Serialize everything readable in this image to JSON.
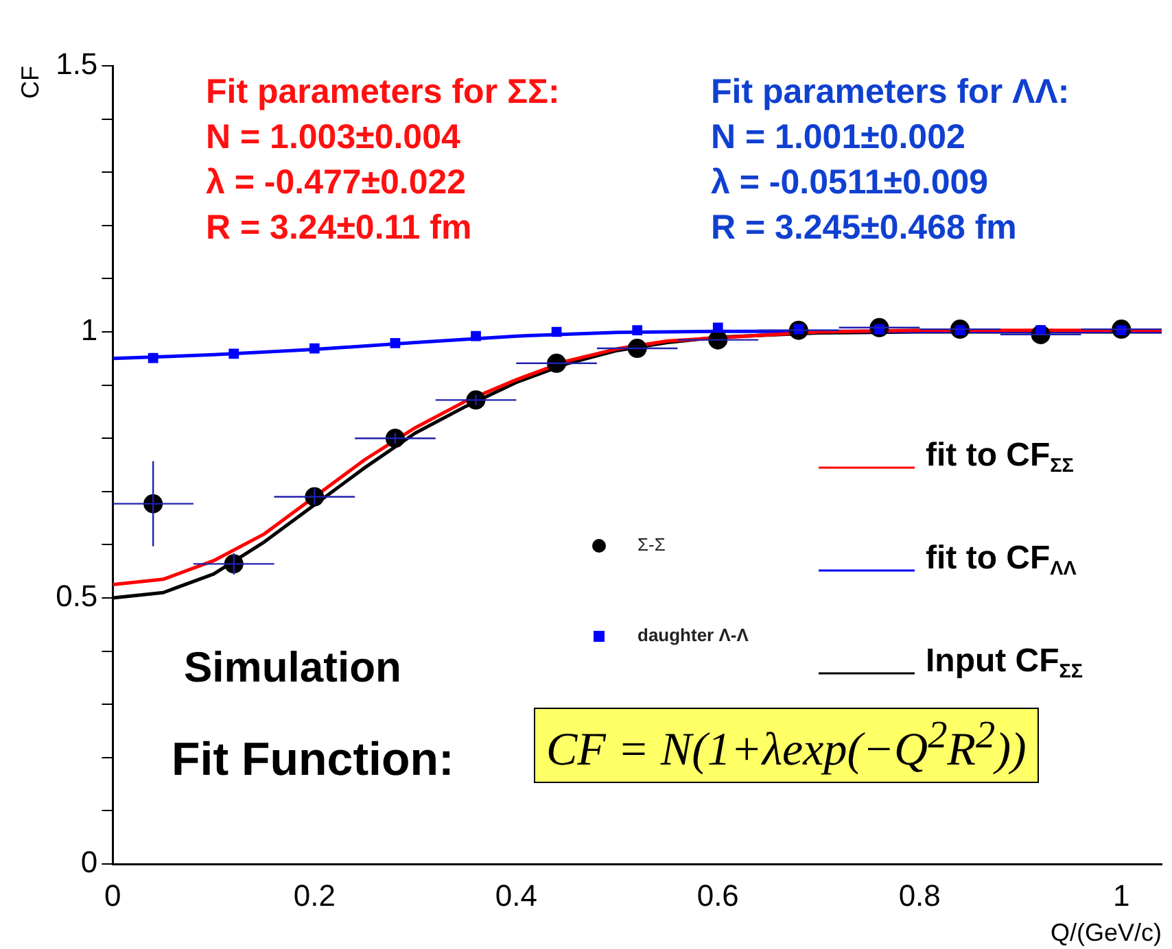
{
  "chart_data": {
    "type": "scatter",
    "xlabel": "Q/(GeV/c)",
    "ylabel": "CF",
    "xlim": [
      0,
      1.04
    ],
    "xticks": [
      0,
      0.2,
      0.4,
      0.6,
      0.8,
      1
    ],
    "ylim": [
      0,
      1.5
    ],
    "yticks": [
      0,
      {
        "value": 0.1,
        "label": null
      },
      {
        "value": 0.2,
        "label": null
      },
      {
        "value": 0.3,
        "label": null
      },
      {
        "value": 0.4,
        "label": null
      },
      0.5,
      {
        "value": 0.6,
        "label": null
      },
      {
        "value": 0.7,
        "label": null
      },
      {
        "value": 0.8,
        "label": null
      },
      {
        "value": 0.9,
        "label": null
      },
      1,
      {
        "value": 1.1,
        "label": null
      },
      {
        "value": 1.2,
        "label": null
      },
      {
        "value": 1.3,
        "label": null
      },
      {
        "value": 1.4,
        "label": null
      },
      1.5
    ],
    "grid": false,
    "legend": "right",
    "series": [
      {
        "name": "Σ-Σ",
        "type": "scatter",
        "marker": "circle",
        "color": "#000000",
        "x": [
          0.04,
          0.12,
          0.2,
          0.28,
          0.36,
          0.44,
          0.52,
          0.6,
          0.68,
          0.76,
          0.84,
          0.92,
          1.0
        ],
        "values": [
          0.677,
          0.564,
          0.69,
          0.8,
          0.872,
          0.941,
          0.969,
          0.985,
          1.003,
          1.008,
          1.005,
          0.995,
          1.005
        ],
        "errors": [
          0.08,
          0.02,
          0.015,
          0.01,
          0.01,
          null,
          null,
          null,
          null,
          null,
          null,
          null,
          null
        ],
        "xerrors": [
          0.04,
          0.04,
          0.04,
          0.04,
          0.04,
          0.04,
          0.04,
          0.04,
          0.04,
          0.04,
          0.04,
          0.04,
          0.04
        ]
      },
      {
        "name": "daughter Λ-Λ",
        "type": "scatter",
        "marker": "square",
        "color": "#0000ff",
        "x": [
          0.04,
          0.12,
          0.2,
          0.28,
          0.36,
          0.44,
          0.52,
          0.6,
          0.68,
          0.76,
          0.84,
          0.92,
          1.0
        ],
        "values": [
          0.951,
          0.959,
          0.969,
          0.979,
          0.992,
          1.0,
          1.003,
          1.008,
          1.005,
          1.005,
          1.003,
          1.003,
          1.003
        ]
      },
      {
        "name": "fit to CF$_{ΣΣ}$",
        "type": "line",
        "marker": "none",
        "color": "#ff0000",
        "x": [
          0,
          0.05,
          0.1,
          0.15,
          0.25,
          0.3,
          0.35,
          0.4,
          0.45,
          0.5,
          0.55,
          0.7,
          0.8,
          1.04
        ],
        "values": [
          0.525,
          0.535,
          0.57,
          0.62,
          0.76,
          0.82,
          0.87,
          0.91,
          0.945,
          0.968,
          0.983,
          1.0,
          1.003,
          1.003
        ]
      },
      {
        "name": "fit to CF$_{ΛΛ}$",
        "type": "line",
        "marker": "none",
        "color": "#0000ff",
        "x": [
          0,
          0.1,
          0.2,
          0.3,
          0.4,
          0.5,
          0.6,
          1.04
        ],
        "values": [
          0.95,
          0.957,
          0.967,
          0.98,
          0.992,
          0.999,
          1.001,
          1.001
        ]
      },
      {
        "name": "Input CF$_{ΣΣ}$",
        "type": "line",
        "marker": "none",
        "color": "#000000",
        "x": [
          0,
          0.05,
          0.1,
          0.15,
          0.2,
          0.25,
          0.3,
          0.35,
          0.4,
          0.45,
          0.5,
          0.55,
          0.6,
          0.7,
          0.8,
          1.04
        ],
        "values": [
          0.5,
          0.51,
          0.545,
          0.605,
          0.675,
          0.745,
          0.81,
          0.86,
          0.905,
          0.94,
          0.965,
          0.98,
          0.99,
          0.998,
          1.0,
          1.0
        ]
      }
    ],
    "annotations": [
      "Fit parameters for ΣΣ:",
      "N = 1.003±0.004",
      "λ = -0.477±0.022",
      "R = 3.24±0.11 fm",
      "Fit parameters for ΛΛ:",
      "N = 1.001±0.002",
      "λ = -0.0511±0.009",
      "R = 3.245±0.468 fm",
      "Simulation",
      "Fit Function:",
      "CF = N(1+λexp(−Q$^{2}$R$^{2}$))"
    ]
  }
}
